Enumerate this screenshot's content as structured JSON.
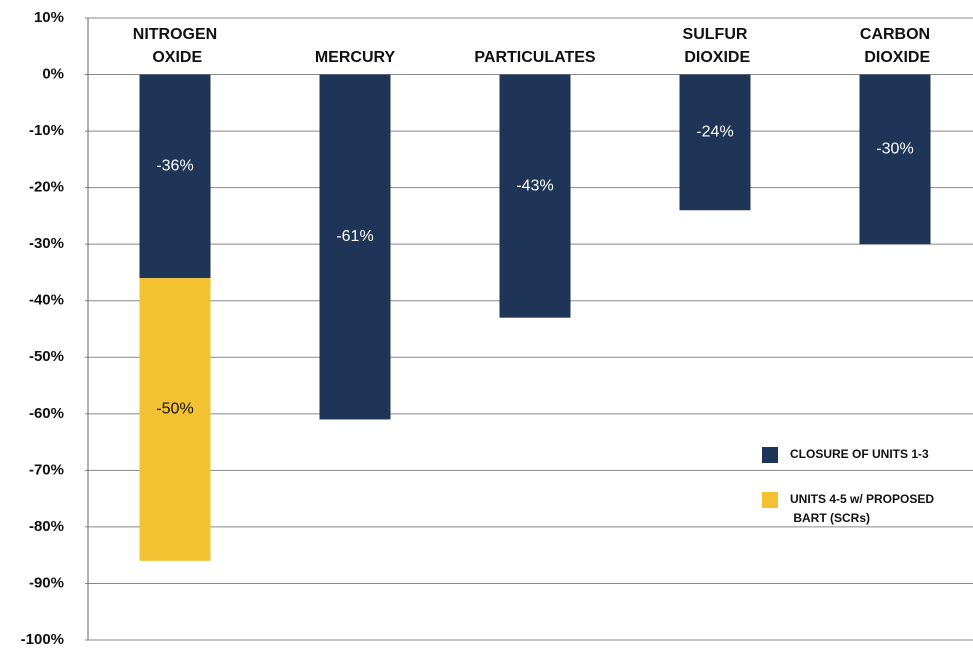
{
  "chart_data": {
    "type": "bar",
    "stacked": true,
    "categories": [
      "NITROGEN OXIDE",
      "MERCURY",
      "PARTICULATES",
      "SULFUR DIOXIDE",
      "CARBON DIOXIDE"
    ],
    "series": [
      {
        "name": "CLOSURE OF UNITS 1-3",
        "color": "#1e3557",
        "label_color": "#ffffff",
        "values": [
          -36,
          -61,
          -43,
          -24,
          -30
        ],
        "value_labels": [
          "-36%",
          "-61%",
          "-43%",
          "-24%",
          "-30%"
        ]
      },
      {
        "name": "UNITS 4-5 w/ PROPOSED BART (SCRs)",
        "color": "#f2c232",
        "label_color": "#111111",
        "values": [
          -50,
          null,
          null,
          null,
          null
        ],
        "value_labels": [
          "-50%",
          null,
          null,
          null,
          null
        ]
      }
    ],
    "ylim": [
      -100,
      10
    ],
    "yticks": [
      {
        "value": 10,
        "label": "10%"
      },
      {
        "value": 0,
        "label": "0%"
      },
      {
        "value": -10,
        "label": "-10%"
      },
      {
        "value": -20,
        "label": "-20%"
      },
      {
        "value": -30,
        "label": "-30%"
      },
      {
        "value": -40,
        "label": "-40%"
      },
      {
        "value": -50,
        "label": "-50%"
      },
      {
        "value": -60,
        "label": "-60%"
      },
      {
        "value": -70,
        "label": "-70%"
      },
      {
        "value": -80,
        "label": "-80%"
      },
      {
        "value": -90,
        "label": "-90%"
      },
      {
        "value": -100,
        "label": "-100%"
      }
    ],
    "grid": true,
    "legend": "lower right"
  }
}
